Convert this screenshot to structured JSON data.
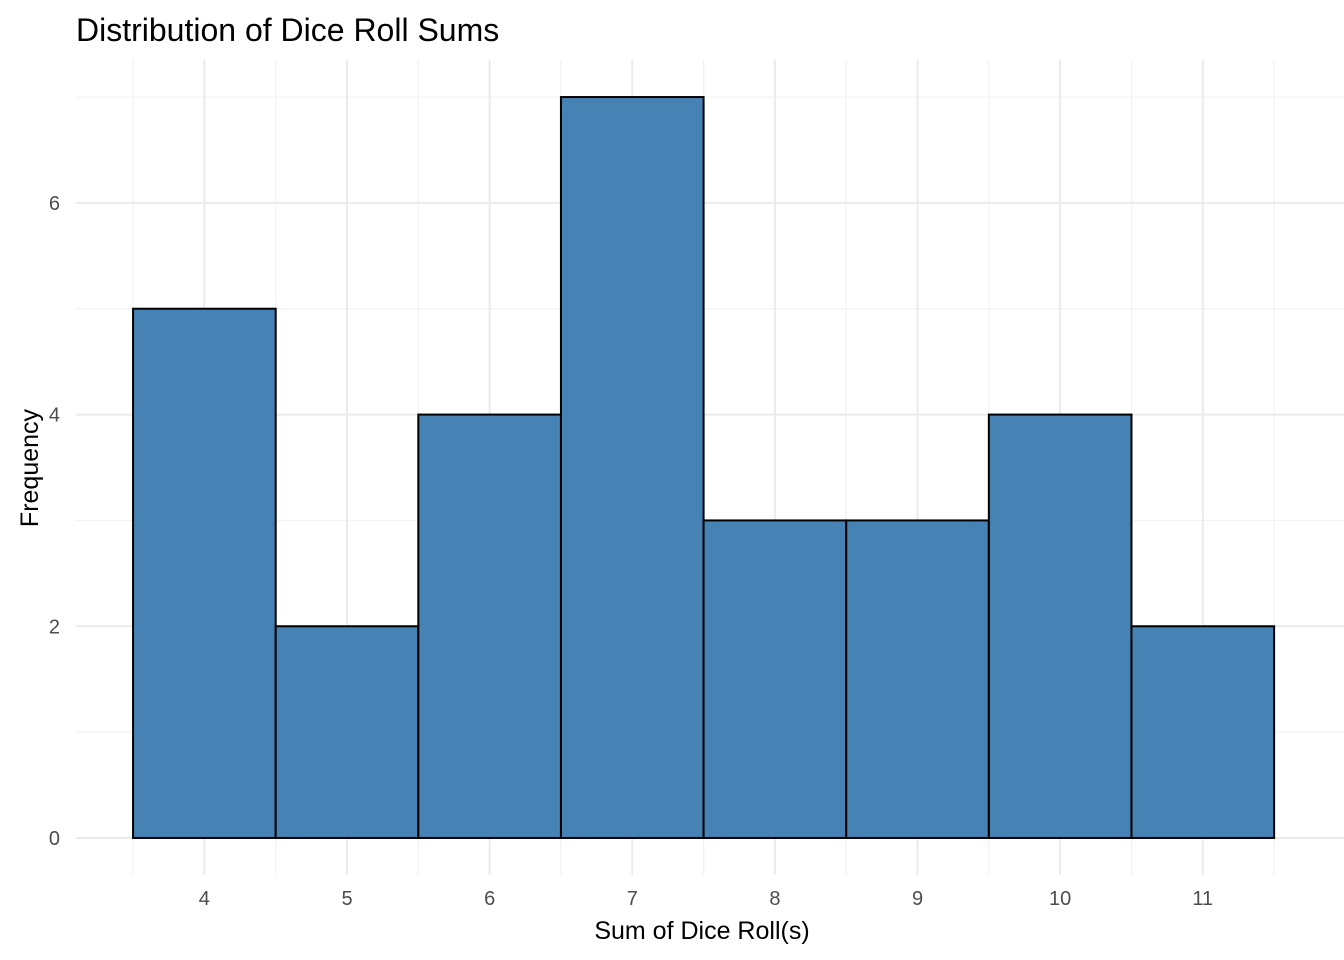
{
  "chart_data": {
    "type": "bar",
    "title": "Distribution of Dice Roll Sums",
    "xlabel": "Sum of Dice Roll(s)",
    "ylabel": "Frequency",
    "categories": [
      4,
      5,
      6,
      7,
      8,
      9,
      10,
      11
    ],
    "values": [
      5,
      2,
      4,
      7,
      3,
      3,
      4,
      2
    ],
    "bin_width": 1,
    "xlim": [
      3.1,
      11.99
    ],
    "ylim": [
      -0.35,
      7.35
    ],
    "x_ticks": [
      "4",
      "5",
      "6",
      "7",
      "8",
      "9",
      "10",
      "11"
    ],
    "y_ticks": [
      "0",
      "2",
      "4",
      "6"
    ],
    "grid": true,
    "legend": "none",
    "colors": {
      "bar_fill": "#4682b4",
      "bar_outline": "#000000"
    }
  }
}
